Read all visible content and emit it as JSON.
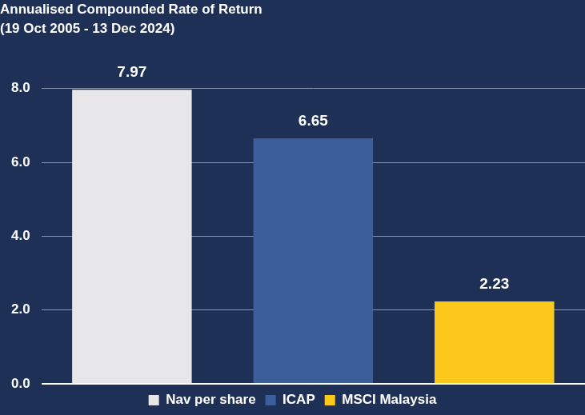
{
  "chart_data": {
    "type": "bar",
    "title": "Annualised Compounded Rate of Return",
    "subtitle": "(19 Oct 2005 - 13 Dec 2024)",
    "categories": [
      "Nav per share",
      "ICAP",
      "MSCI Malaysia"
    ],
    "values": [
      7.97,
      6.65,
      2.23
    ],
    "colors": [
      "#e7e7ea",
      "#3c5f9c",
      "#fdc81c"
    ],
    "ylim": [
      0,
      8
    ],
    "yticks": [
      {
        "value": 0,
        "label": "0.0"
      },
      {
        "value": 2,
        "label": "2.0"
      },
      {
        "value": 4,
        "label": "4.0"
      },
      {
        "value": 6,
        "label": "6.0"
      },
      {
        "value": 8,
        "label": "8.0"
      }
    ],
    "grid": true,
    "legend": "bottom",
    "data_labels": true,
    "tick_labels": "y"
  }
}
